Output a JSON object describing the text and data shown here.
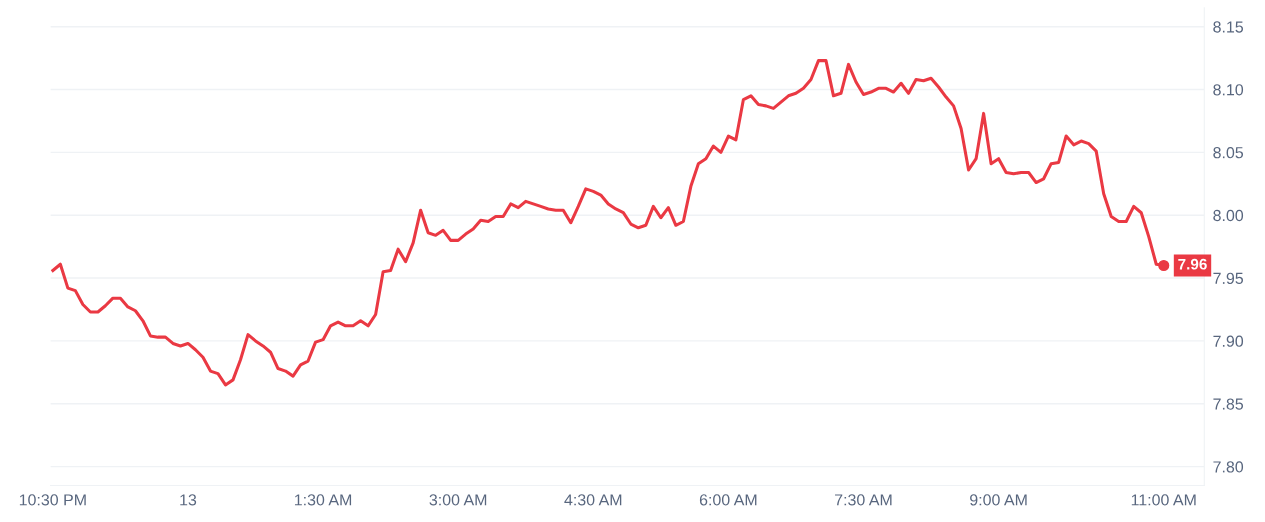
{
  "chart_data": {
    "type": "line",
    "categories": [
      "10:30 PM",
      null,
      null,
      null,
      null,
      null,
      null,
      null,
      null,
      null,
      null,
      null,
      null,
      null,
      null,
      null,
      null,
      null,
      "13",
      null,
      null,
      null,
      null,
      null,
      null,
      null,
      null,
      null,
      null,
      null,
      null,
      null,
      null,
      null,
      null,
      null,
      "1:30 AM",
      null,
      null,
      null,
      null,
      null,
      null,
      null,
      null,
      null,
      null,
      null,
      null,
      null,
      null,
      null,
      null,
      null,
      "3:00 AM",
      null,
      null,
      null,
      null,
      null,
      null,
      null,
      null,
      null,
      null,
      null,
      null,
      null,
      null,
      null,
      null,
      null,
      "4:30 AM",
      null,
      null,
      null,
      null,
      null,
      null,
      null,
      null,
      null,
      null,
      null,
      null,
      null,
      null,
      null,
      null,
      null,
      "6:00 AM",
      null,
      null,
      null,
      null,
      null,
      null,
      null,
      null,
      null,
      null,
      null,
      null,
      null,
      null,
      null,
      null,
      null,
      "7:30 AM",
      null,
      null,
      null,
      null,
      null,
      null,
      null,
      null,
      null,
      null,
      null,
      null,
      null,
      null,
      null,
      null,
      null,
      "9:00 AM",
      null,
      null,
      null,
      null,
      null,
      null,
      null,
      null,
      null,
      null,
      null,
      null,
      null,
      null,
      null,
      null,
      null,
      null,
      null,
      null,
      null,
      "11:00 AM"
    ],
    "series": [
      {
        "color": "#ea3943",
        "values": [
          7.956,
          7.961,
          7.942,
          7.94,
          7.929,
          7.923,
          7.923,
          7.928,
          7.934,
          7.934,
          7.927,
          7.924,
          7.916,
          7.904,
          7.903,
          7.903,
          7.898,
          7.896,
          7.898,
          7.893,
          7.887,
          7.876,
          7.874,
          7.865,
          7.869,
          7.885,
          7.905,
          7.9,
          7.896,
          7.891,
          7.878,
          7.876,
          7.872,
          7.881,
          7.884,
          7.899,
          7.901,
          7.912,
          7.915,
          7.912,
          7.912,
          7.916,
          7.912,
          7.921,
          7.955,
          7.956,
          7.973,
          7.963,
          7.978,
          8.004,
          7.986,
          7.984,
          7.988,
          7.98,
          7.98,
          7.985,
          7.989,
          7.996,
          7.995,
          7.999,
          7.999,
          8.009,
          8.006,
          8.011,
          8.009,
          8.007,
          8.005,
          8.004,
          8.004,
          7.994,
          8.007,
          8.021,
          8.019,
          8.016,
          8.009,
          8.005,
          8.002,
          7.993,
          7.99,
          7.992,
          8.007,
          7.998,
          8.006,
          7.992,
          7.995,
          8.023,
          8.041,
          8.045,
          8.055,
          8.05,
          8.063,
          8.06,
          8.092,
          8.095,
          8.088,
          8.087,
          8.085,
          8.09,
          8.095,
          8.097,
          8.101,
          8.108,
          8.123,
          8.123,
          8.095,
          8.097,
          8.12,
          8.106,
          8.096,
          8.098,
          8.101,
          8.101,
          8.098,
          8.105,
          8.097,
          8.108,
          8.107,
          8.109,
          8.102,
          8.094,
          8.087,
          8.069,
          8.036,
          8.045,
          8.081,
          8.041,
          8.045,
          8.034,
          8.033,
          8.034,
          8.034,
          8.026,
          8.029,
          8.041,
          8.042,
          8.063,
          8.056,
          8.059,
          8.057,
          8.051,
          8.017,
          7.999,
          7.995,
          7.995,
          8.007,
          8.002,
          7.983,
          7.961,
          7.96
        ]
      }
    ],
    "ylim": [
      7.785,
      8.165
    ],
    "yticks": [
      {
        "value": 7.8,
        "label": "7.80"
      },
      {
        "value": 7.85,
        "label": "7.85"
      },
      {
        "value": 7.9,
        "label": "7.90"
      },
      {
        "value": 7.95,
        "label": "7.95"
      },
      {
        "value": 8.0,
        "label": "8.00"
      },
      {
        "value": 8.05,
        "label": "8.05"
      },
      {
        "value": 8.1,
        "label": "8.10"
      },
      {
        "value": 8.15,
        "label": "8.15"
      }
    ],
    "grid": "y",
    "annotations": [
      {
        "text": "7.96",
        "x": "11:00 AM",
        "y": 7.96
      }
    ]
  }
}
